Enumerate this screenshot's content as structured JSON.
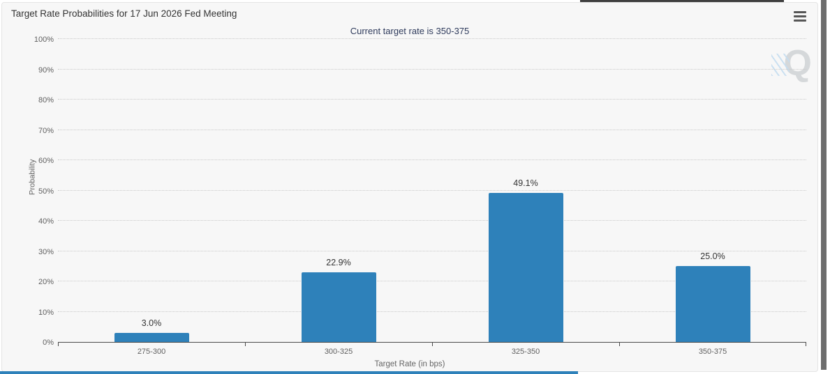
{
  "chart_data": {
    "type": "bar",
    "title": "Target Rate Probabilities for 17 Jun 2026 Fed Meeting",
    "subtitle": "Current target rate is 350-375",
    "categories": [
      "275-300",
      "300-325",
      "325-350",
      "350-375"
    ],
    "values": [
      3.0,
      22.9,
      49.1,
      25.0
    ],
    "value_labels": [
      "3.0%",
      "22.9%",
      "49.1%",
      "25.0%"
    ],
    "xlabel": "Target Rate (in bps)",
    "ylabel": "Probability",
    "ylim": [
      0,
      100
    ],
    "ytick_step": 10,
    "ytick_labels": [
      "0%",
      "10%",
      "20%",
      "30%",
      "40%",
      "50%",
      "60%",
      "70%",
      "80%",
      "90%",
      "100%"
    ],
    "grid": "horizontal dotted",
    "legend": "none",
    "bar_color": "#2e81ba",
    "watermark_letter": "Q"
  },
  "colors": {
    "card_background": "#f7f7f7",
    "title_text": "#333333",
    "subtitle_text": "#2f3b5c",
    "axis_text": "#606060",
    "bar_fill": "#2e81ba",
    "bottom_strip": "#2e81ba",
    "scrollbar_thumb": "#6d6d6d"
  },
  "icons": {
    "menu": "hamburger-icon",
    "watermark": "quikstrike-q-logo"
  }
}
